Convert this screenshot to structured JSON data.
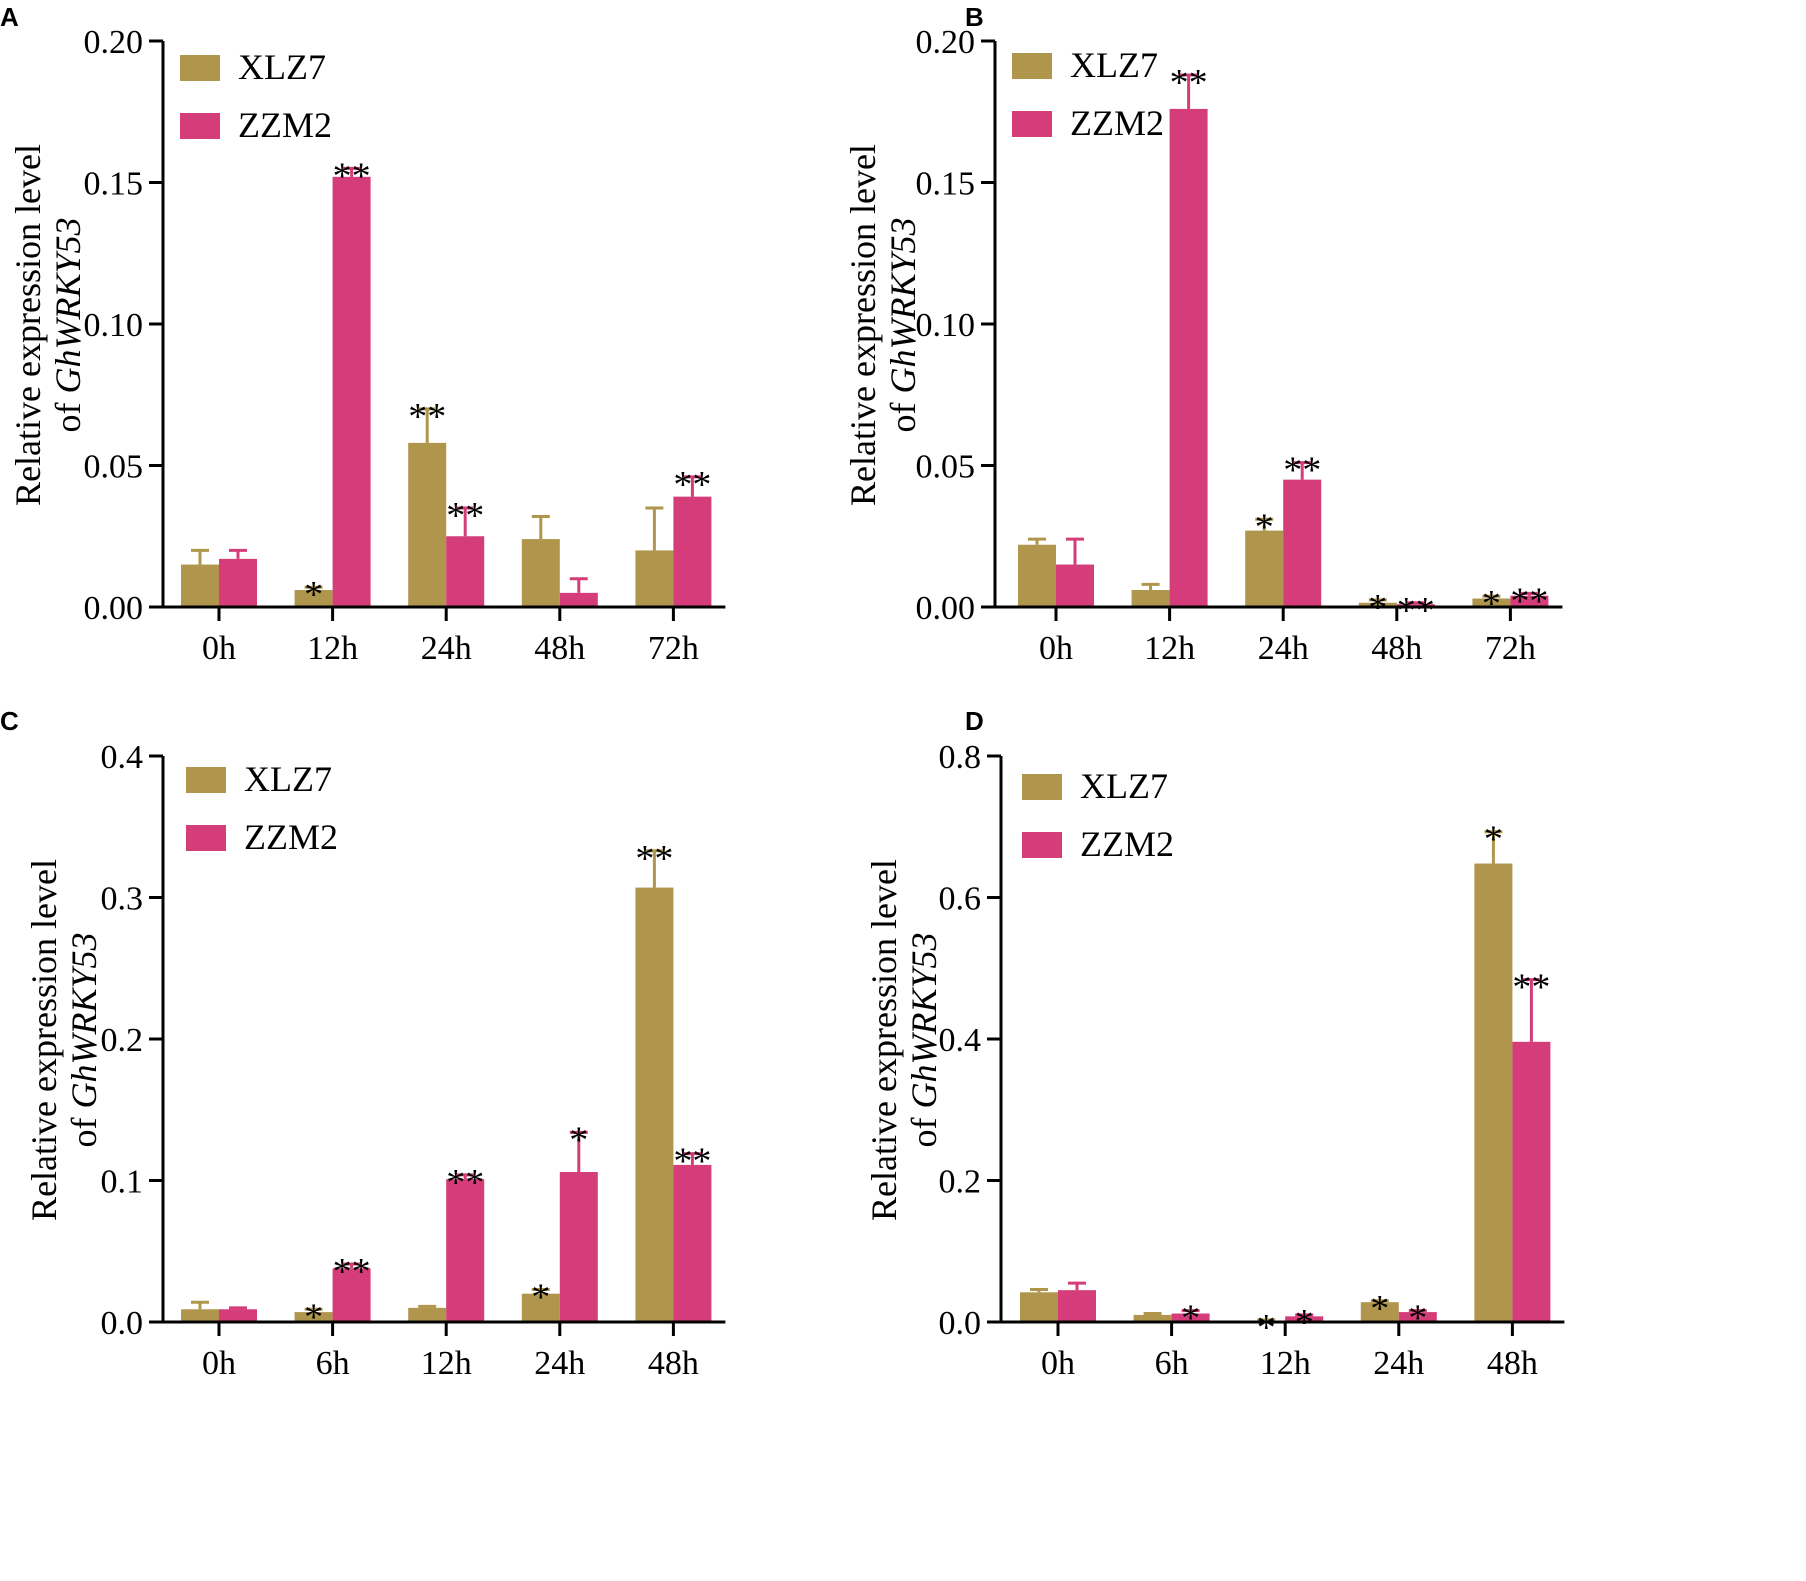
{
  "colors": {
    "XLZ7": "#b0964d",
    "ZZM2": "#d43d79",
    "axis": "#000000"
  },
  "axis_title": {
    "line1": "Relative expression level",
    "line2_prefix": "of ",
    "gene": "GhWRKY53"
  },
  "legend": [
    "XLZ7",
    "ZZM2"
  ],
  "chart_data": [
    {
      "type": "bar",
      "panel": "A",
      "categories": [
        "0h",
        "12h",
        "24h",
        "48h",
        "72h"
      ],
      "ylim": [
        0,
        0.2
      ],
      "yticks": [
        "0.00",
        "0.05",
        "0.10",
        "0.15",
        "0.20"
      ],
      "ytick_values": [
        0,
        0.05,
        0.1,
        0.15,
        0.2
      ],
      "series": [
        {
          "name": "XLZ7",
          "values": [
            0.015,
            0.006,
            0.058,
            0.024,
            0.02
          ],
          "errors": [
            0.005,
            0.001,
            0.012,
            0.008,
            0.015
          ],
          "sig": [
            "",
            "*",
            "**",
            "",
            ""
          ]
        },
        {
          "name": "ZZM2",
          "values": [
            0.017,
            0.152,
            0.025,
            0.005,
            0.039
          ],
          "errors": [
            0.003,
            0.003,
            0.01,
            0.005,
            0.007
          ],
          "sig": [
            "",
            "**",
            "**",
            "",
            "**"
          ]
        }
      ]
    },
    {
      "type": "bar",
      "panel": "B",
      "categories": [
        "0h",
        "12h",
        "24h",
        "48h",
        "72h"
      ],
      "ylim": [
        0,
        0.2
      ],
      "yticks": [
        "0.00",
        "0.05",
        "0.10",
        "0.15",
        "0.20"
      ],
      "ytick_values": [
        0,
        0.05,
        0.1,
        0.15,
        0.2
      ],
      "series": [
        {
          "name": "XLZ7",
          "values": [
            0.022,
            0.006,
            0.027,
            0.0015,
            0.003
          ],
          "errors": [
            0.002,
            0.002,
            0.004,
            0.001,
            0.0008
          ],
          "sig": [
            "",
            "",
            "*",
            "*",
            "*"
          ]
        },
        {
          "name": "ZZM2",
          "values": [
            0.015,
            0.176,
            0.045,
            0.001,
            0.004
          ],
          "errors": [
            0.009,
            0.012,
            0.006,
            0.0005,
            0.0008
          ],
          "sig": [
            "",
            "**",
            "**",
            "**",
            "**"
          ]
        }
      ]
    },
    {
      "type": "bar",
      "panel": "C",
      "categories": [
        "0h",
        "6h",
        "12h",
        "24h",
        "48h"
      ],
      "ylim": [
        0,
        0.4
      ],
      "yticks": [
        "0.0",
        "0.1",
        "0.2",
        "0.3",
        "0.4"
      ],
      "ytick_values": [
        0,
        0.1,
        0.2,
        0.3,
        0.4
      ],
      "series": [
        {
          "name": "XLZ7",
          "values": [
            0.009,
            0.007,
            0.01,
            0.02,
            0.307
          ],
          "errors": [
            0.005,
            0.002,
            0.001,
            0.003,
            0.026
          ],
          "sig": [
            "",
            "*",
            "",
            "*",
            "**"
          ]
        },
        {
          "name": "ZZM2",
          "values": [
            0.009,
            0.038,
            0.101,
            0.106,
            0.111
          ],
          "errors": [
            0.001,
            0.003,
            0.003,
            0.028,
            0.008
          ],
          "sig": [
            "",
            "**",
            "**",
            "*",
            "**"
          ]
        }
      ]
    },
    {
      "type": "bar",
      "panel": "D",
      "categories": [
        "0h",
        "6h",
        "12h",
        "24h",
        "48h"
      ],
      "ylim": [
        0,
        0.8
      ],
      "yticks": [
        "0.0",
        "0.2",
        "0.4",
        "0.6",
        "0.8"
      ],
      "ytick_values": [
        0,
        0.2,
        0.4,
        0.6,
        0.8
      ],
      "series": [
        {
          "name": "XLZ7",
          "values": [
            0.042,
            0.01,
            0.002,
            0.028,
            0.648
          ],
          "errors": [
            0.004,
            0.002,
            0.001,
            0.002,
            0.045
          ],
          "sig": [
            "",
            "",
            "*",
            "*",
            "*"
          ]
        },
        {
          "name": "ZZM2",
          "values": [
            0.045,
            0.012,
            0.008,
            0.014,
            0.396
          ],
          "errors": [
            0.01,
            0.004,
            0.002,
            0.002,
            0.088
          ],
          "sig": [
            "",
            "*",
            "*",
            "*",
            "**"
          ]
        }
      ]
    }
  ]
}
